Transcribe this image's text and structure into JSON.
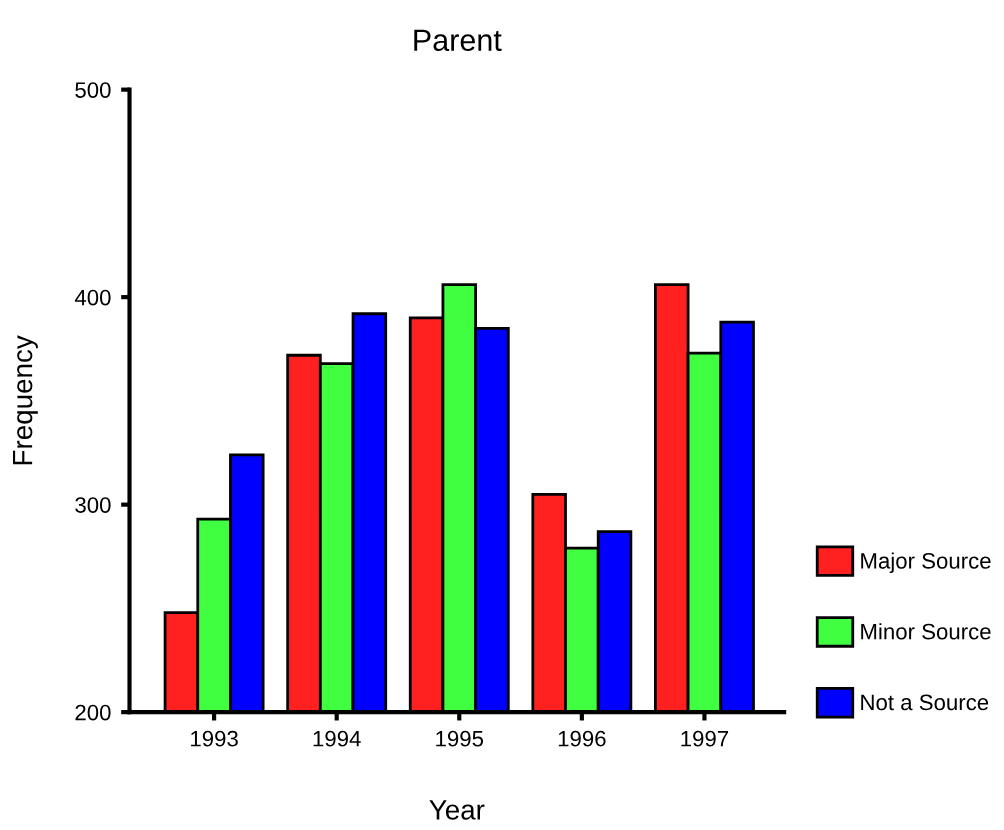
{
  "chart_data": {
    "type": "bar",
    "title": "Parent",
    "xlabel": "Year",
    "ylabel": "Frequency",
    "categories": [
      "1993",
      "1994",
      "1995",
      "1996",
      "1997"
    ],
    "series": [
      {
        "name": "Major Source",
        "color": "#ff2020",
        "values": [
          248,
          372,
          390,
          305,
          406
        ]
      },
      {
        "name": "Minor Source",
        "color": "#40ff40",
        "values": [
          293,
          368,
          406,
          279,
          373
        ]
      },
      {
        "name": "Not a Source",
        "color": "#0000ff",
        "values": [
          324,
          392,
          385,
          287,
          388
        ]
      }
    ],
    "ylim": [
      200,
      500
    ],
    "yticks": [
      200,
      300,
      400,
      500
    ],
    "grid": false,
    "legend": "right"
  }
}
